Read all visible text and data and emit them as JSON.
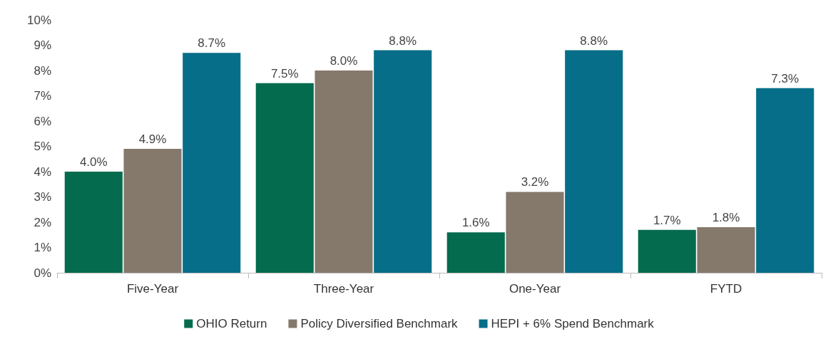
{
  "chart_data": {
    "type": "bar",
    "categories": [
      "Five-Year",
      "Three-Year",
      "One-Year",
      "FYTD"
    ],
    "series": [
      {
        "name": "OHIO Return",
        "color": "#056b4e",
        "values": [
          4.0,
          7.5,
          1.6,
          1.7
        ]
      },
      {
        "name": "Policy Diversified Benchmark",
        "color": "#85796c",
        "values": [
          4.9,
          8.0,
          3.2,
          1.8
        ]
      },
      {
        "name": "HEPI + 6% Spend Benchmark",
        "color": "#066e88",
        "values": [
          8.7,
          8.8,
          8.8,
          7.3
        ]
      }
    ],
    "ylim": [
      0,
      10
    ],
    "yticks": [
      {
        "value": 0,
        "label": "0%"
      },
      {
        "value": 1,
        "label": "1%"
      },
      {
        "value": 2,
        "label": "2%"
      },
      {
        "value": 3,
        "label": "3%"
      },
      {
        "value": 4,
        "label": "4%"
      },
      {
        "value": 5,
        "label": "5%"
      },
      {
        "value": 6,
        "label": "6%"
      },
      {
        "value": 7,
        "label": "7%"
      },
      {
        "value": 8,
        "label": "8%"
      },
      {
        "value": 9,
        "label": "9%"
      },
      {
        "value": 10,
        "label": "10%"
      }
    ],
    "value_labels": [
      [
        "4.0%",
        "7.5%",
        "1.6%",
        "1.7%"
      ],
      [
        "4.9%",
        "8.0%",
        "3.2%",
        "1.8%"
      ],
      [
        "8.7%",
        "8.8%",
        "8.8%",
        "7.3%"
      ]
    ],
    "grid": false,
    "legend": "bottom"
  }
}
